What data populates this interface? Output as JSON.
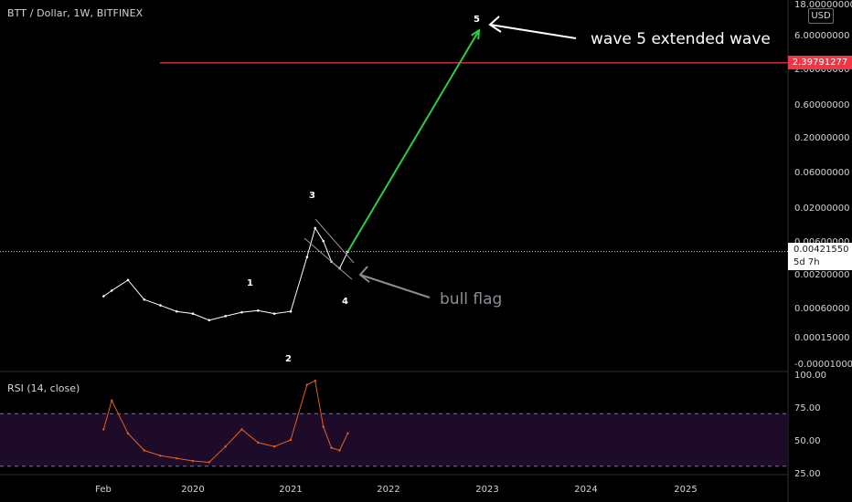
{
  "header": {
    "symbol": "BTT / Dollar, 1W, BITFINEX",
    "currency": "USD"
  },
  "rsi_panel": {
    "title": "RSI (14, close)"
  },
  "price_tags": {
    "resistance": "2.39791277",
    "current_price": "0.00421550",
    "countdown": "5d 7h"
  },
  "annotations": {
    "wave_labels": [
      "1",
      "2",
      "3",
      "4",
      "5"
    ],
    "wave5_note": "wave 5 extended wave",
    "flag_note": "bull flag"
  },
  "colors": {
    "background": "#000000",
    "price_line": "#ffffff",
    "resistance_line": "#f23645",
    "projection_arrow": "#2ecc40",
    "rsi_line": "#e8601c",
    "rsi_band": "#1e0b2a",
    "axis_text": "#d1d4dc"
  },
  "chart_data": [
    {
      "type": "line",
      "title": "BTT / Dollar, 1W, BITFINEX",
      "y_scale": "log",
      "y_ticks": [
        "18.00000000",
        "6.00000000",
        "2.00000000",
        "0.60000000",
        "0.20000000",
        "0.06000000",
        "0.02000000",
        "0.00600000",
        "0.00200000",
        "0.00060000",
        "0.00015000",
        "-0.00001000"
      ],
      "x_ticks": [
        "Feb",
        "2020",
        "2021",
        "2022",
        "2023",
        "2024",
        "2025"
      ],
      "x": [
        "2019-02",
        "2019-03",
        "2019-05",
        "2019-07",
        "2019-09",
        "2019-11",
        "2020-01",
        "2020-03",
        "2020-05",
        "2020-07",
        "2020-09",
        "2020-11",
        "2021-01",
        "2021-03",
        "2021-04",
        "2021-05",
        "2021-06",
        "2021-07",
        "2021-08"
      ],
      "series": [
        {
          "values": [
            0.0009,
            0.0011,
            0.0016,
            0.0008,
            0.00065,
            0.0005,
            0.00045,
            0.00033,
            0.0004,
            0.00048,
            0.00052,
            0.00045,
            0.0005,
            0.0035,
            0.0095,
            0.006,
            0.003,
            0.0024,
            0.0042
          ]
        }
      ],
      "horizontal_lines": [
        {
          "value": 2.39791277
        }
      ],
      "current_price": 0.0042155,
      "projection": {
        "from_date": "2021-08",
        "to_date": "2022-12",
        "from_value": 0.0042,
        "to_value": 7.0
      }
    },
    {
      "type": "line",
      "title": "RSI (14, close)",
      "y_ticks": [
        "100.00",
        "75.00",
        "50.00",
        "25.00"
      ],
      "ylim": [
        25,
        100
      ],
      "bands": [
        30,
        70
      ],
      "x": [
        "2019-02",
        "2019-03",
        "2019-05",
        "2019-07",
        "2019-09",
        "2019-11",
        "2020-01",
        "2020-03",
        "2020-05",
        "2020-07",
        "2020-09",
        "2020-11",
        "2021-01",
        "2021-03",
        "2021-04",
        "2021-05",
        "2021-06",
        "2021-07",
        "2021-08"
      ],
      "series": [
        {
          "values": [
            58,
            80,
            55,
            42,
            38,
            36,
            34,
            33,
            45,
            58,
            48,
            45,
            50,
            92,
            95,
            60,
            44,
            42,
            55
          ]
        }
      ]
    }
  ]
}
